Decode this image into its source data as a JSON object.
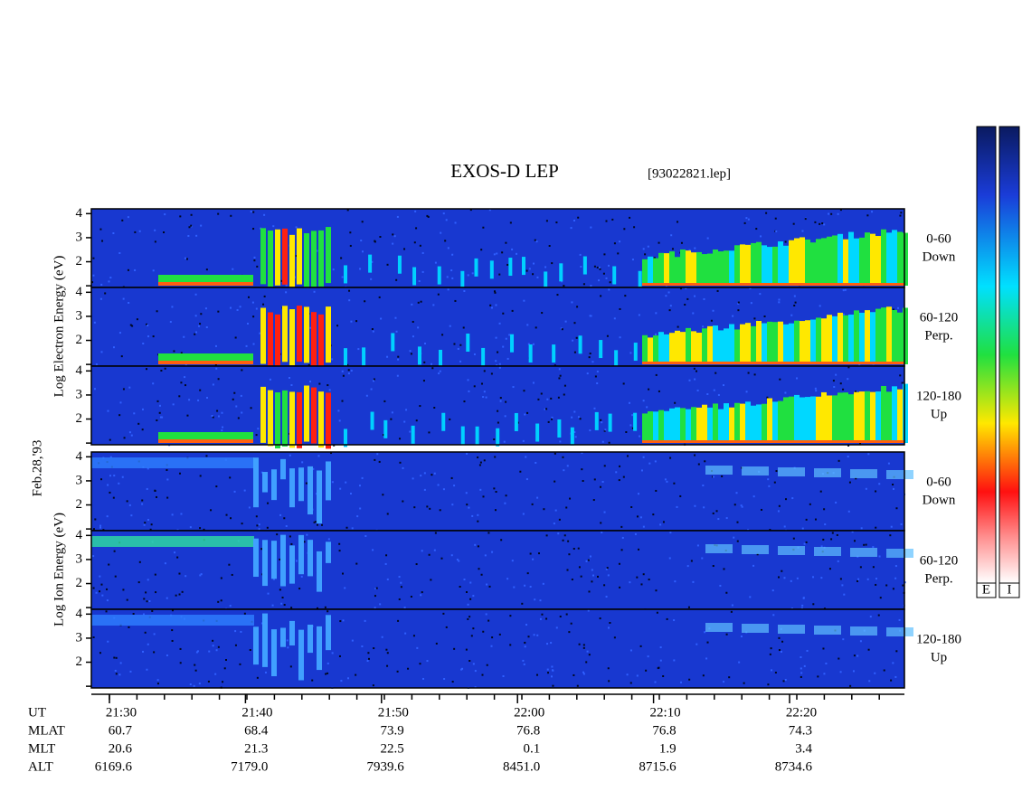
{
  "title": "EXOS-D LEP",
  "file": "[93022821.lep]",
  "date": "Feb.28,'93",
  "ylim": [
    0.93,
    4.2
  ],
  "yticks": [
    2,
    3,
    4
  ],
  "unlabeled_yticks": [
    1
  ],
  "groups": [
    {
      "label": "Log Electron Energy (eV)",
      "panels": [
        {
          "angle": "0-60",
          "direction": "Down"
        },
        {
          "angle": "60-120",
          "direction": "Perp."
        },
        {
          "angle": "120-180",
          "direction": "Up"
        }
      ]
    },
    {
      "label": "Log Ion Energy (eV)",
      "panels": [
        {
          "angle": "0-60",
          "direction": "Down"
        },
        {
          "angle": "60-120",
          "direction": "Perp."
        },
        {
          "angle": "120-180",
          "direction": "Up"
        }
      ]
    }
  ],
  "colorbar_labels": [
    "E",
    "I"
  ],
  "ephemeris": [
    {
      "name": "UT",
      "values": [
        "21:30",
        "21:40",
        "21:50",
        "22:00",
        "22:10",
        "22:20"
      ]
    },
    {
      "name": "MLAT",
      "values": [
        "60.7",
        "68.4",
        "73.9",
        "76.8",
        "76.8",
        "74.3"
      ]
    },
    {
      "name": "MLT",
      "values": [
        "20.6",
        "21.3",
        "22.5",
        "0.1",
        "1.9",
        "3.4"
      ]
    },
    {
      "name": "ALT",
      "values": [
        "6169.6",
        "7179.0",
        "7939.6",
        "8451.0",
        "8715.6",
        "8734.6"
      ]
    }
  ]
}
